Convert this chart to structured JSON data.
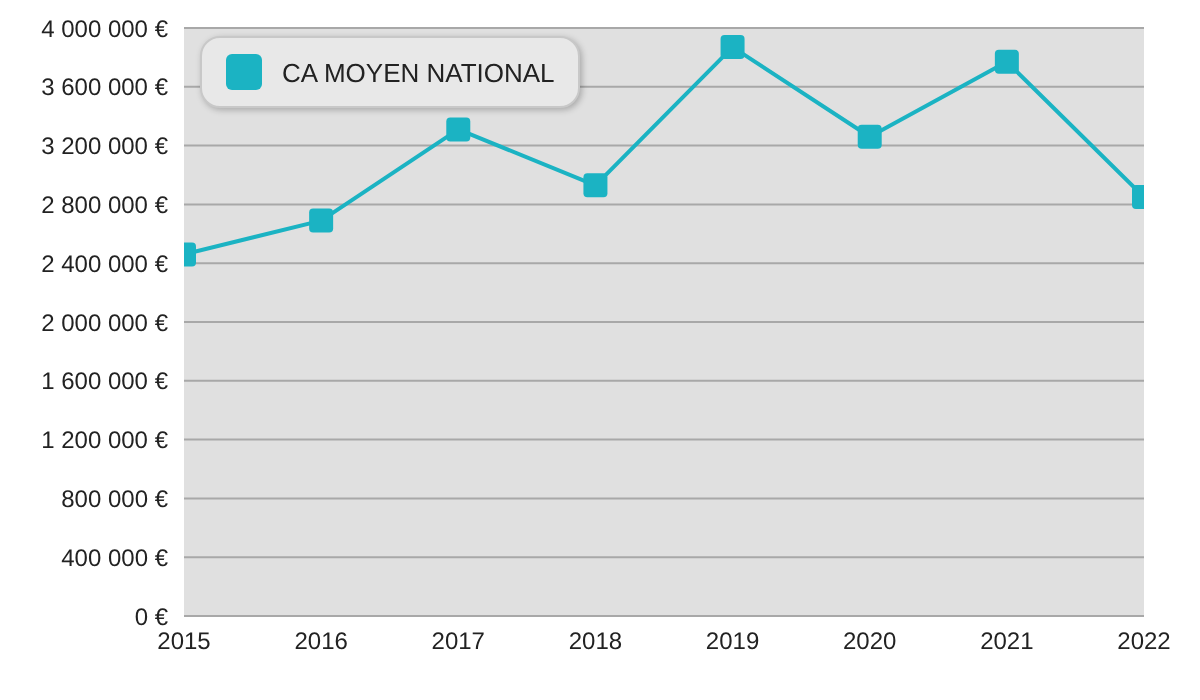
{
  "chart_data": {
    "type": "line",
    "categories": [
      "2015",
      "2016",
      "2017",
      "2018",
      "2019",
      "2020",
      "2021",
      "2022"
    ],
    "series": [
      {
        "name": "CA MOYEN NATIONAL",
        "color": "#1bb3c3",
        "values": [
          2460000,
          2690000,
          3310000,
          2930000,
          3870000,
          3260000,
          3770000,
          2850000
        ]
      }
    ],
    "ylim": [
      0,
      4000000
    ],
    "yticks": [
      {
        "value": 0,
        "label": "0 €"
      },
      {
        "value": 400000,
        "label": "400 000 €"
      },
      {
        "value": 800000,
        "label": "800 000 €"
      },
      {
        "value": 1200000,
        "label": "1 200 000 €"
      },
      {
        "value": 1600000,
        "label": "1 600 000 €"
      },
      {
        "value": 2000000,
        "label": "2 000 000 €"
      },
      {
        "value": 2400000,
        "label": "2 400 000 €"
      },
      {
        "value": 2800000,
        "label": "2 800 000 €"
      },
      {
        "value": 3200000,
        "label": "3 200 000 €"
      },
      {
        "value": 3600000,
        "label": "3 600 000 €"
      },
      {
        "value": 4000000,
        "label": "4 000 000 €"
      }
    ],
    "grid": "y",
    "legend": "top left",
    "marker": "square",
    "line_style": "solid"
  }
}
